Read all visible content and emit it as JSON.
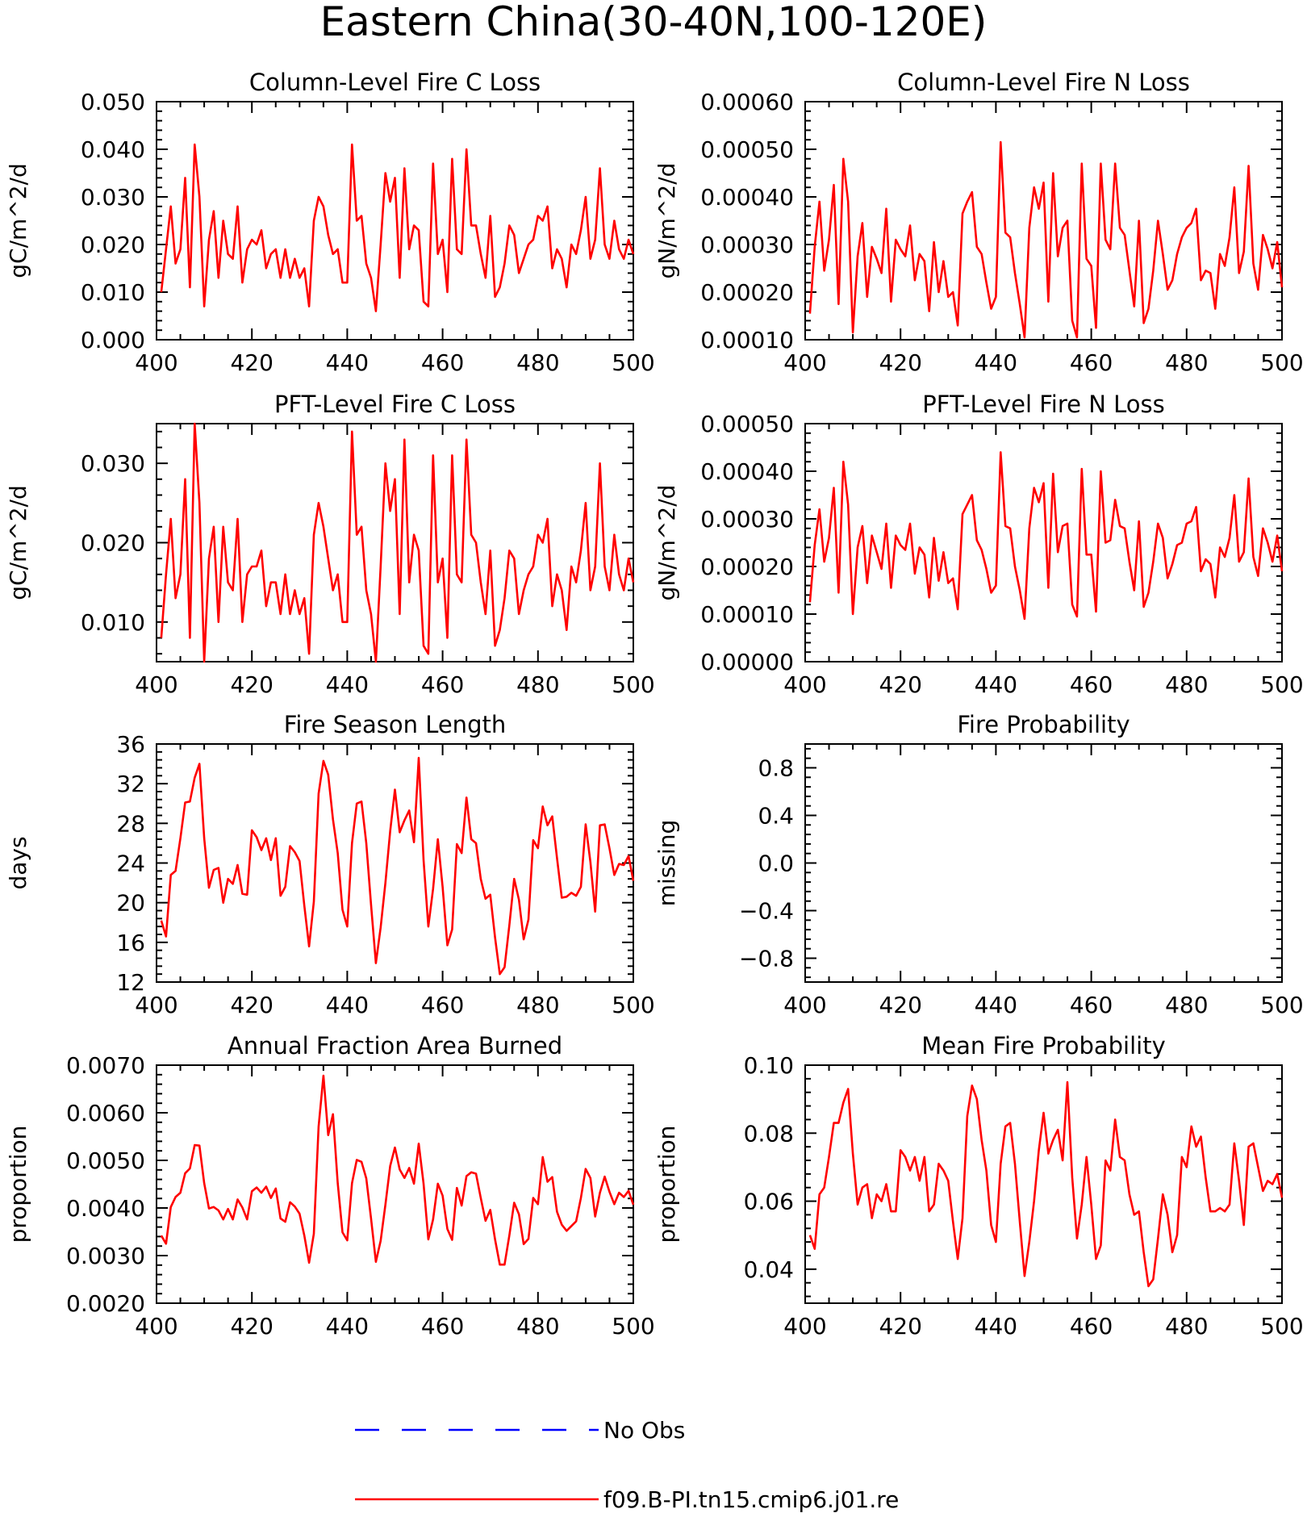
{
  "title": "Eastern China(30-40N,100-120E)",
  "colors": {
    "model": "#ff0000",
    "obs": "#0000ff",
    "axis": "#000000"
  },
  "legend": {
    "obs_label": "No Obs",
    "model_label": "f09.B-PI.tn15.cmip6.j01.re"
  },
  "chart_data": [
    {
      "type": "line",
      "title": "Column-Level Fire C Loss",
      "ylabel": "gC/m^2/d",
      "xlabel": "",
      "xlim": [
        400,
        500
      ],
      "ylim": [
        0.0,
        0.05
      ],
      "xticks": [
        "400",
        "420",
        "440",
        "460",
        "480",
        "500"
      ],
      "yticks": [
        0.0,
        0.01,
        0.02,
        0.03,
        0.04,
        0.05
      ],
      "ytick_labels": [
        "0.000",
        "0.010",
        "0.020",
        "0.030",
        "0.040",
        "0.050"
      ],
      "x_start": 401,
      "series": [
        {
          "name": "f09.B-PI.tn15.cmip6.j01.re",
          "values": [
            0.01,
            0.019,
            0.028,
            0.016,
            0.019,
            0.034,
            0.011,
            0.041,
            0.03,
            0.007,
            0.021,
            0.027,
            0.013,
            0.025,
            0.018,
            0.017,
            0.028,
            0.012,
            0.019,
            0.021,
            0.02,
            0.023,
            0.015,
            0.018,
            0.019,
            0.013,
            0.019,
            0.013,
            0.017,
            0.013,
            0.015,
            0.007,
            0.025,
            0.03,
            0.028,
            0.022,
            0.018,
            0.019,
            0.012,
            0.012,
            0.041,
            0.025,
            0.026,
            0.016,
            0.013,
            0.006,
            0.02,
            0.035,
            0.029,
            0.034,
            0.013,
            0.036,
            0.019,
            0.024,
            0.023,
            0.008,
            0.007,
            0.037,
            0.018,
            0.021,
            0.01,
            0.038,
            0.019,
            0.018,
            0.04,
            0.024,
            0.024,
            0.018,
            0.013,
            0.026,
            0.009,
            0.011,
            0.016,
            0.024,
            0.022,
            0.014,
            0.017,
            0.02,
            0.021,
            0.026,
            0.025,
            0.028,
            0.015,
            0.019,
            0.017,
            0.011,
            0.02,
            0.018,
            0.023,
            0.03,
            0.017,
            0.021,
            0.036,
            0.02,
            0.017,
            0.025,
            0.019,
            0.017,
            0.021,
            0.018
          ]
        }
      ]
    },
    {
      "type": "line",
      "title": "Column-Level Fire N Loss",
      "ylabel": "gN/m^2/d",
      "xlabel": "",
      "xlim": [
        400,
        500
      ],
      "ylim": [
        0.0001,
        0.0006
      ],
      "xticks": [
        "400",
        "420",
        "440",
        "460",
        "480",
        "500"
      ],
      "yticks": [
        0.0001,
        0.0002,
        0.0003,
        0.0004,
        0.0005,
        0.0006
      ],
      "ytick_labels": [
        "0.00010",
        "0.00020",
        "0.00030",
        "0.00040",
        "0.00050",
        "0.00060"
      ],
      "x_start": 401,
      "series": [
        {
          "name": "f09.B-PI.tn15.cmip6.j01.re",
          "values": [
            0.000155,
            0.000295,
            0.00039,
            0.000245,
            0.00031,
            0.000425,
            0.000175,
            0.00048,
            0.00039,
            0.000115,
            0.000275,
            0.000345,
            0.00019,
            0.000295,
            0.00027,
            0.00024,
            0.000375,
            0.00018,
            0.00031,
            0.00029,
            0.000275,
            0.00034,
            0.000225,
            0.00028,
            0.000265,
            0.00016,
            0.000305,
            0.0002,
            0.000265,
            0.00019,
            0.0002,
            0.00013,
            0.000365,
            0.00039,
            0.00041,
            0.000295,
            0.00028,
            0.00022,
            0.000165,
            0.00019,
            0.000515,
            0.000325,
            0.000315,
            0.00024,
            0.000175,
            0.000105,
            0.000335,
            0.00042,
            0.000375,
            0.00043,
            0.00018,
            0.00045,
            0.000275,
            0.000335,
            0.00035,
            0.00014,
            0.000105,
            0.00047,
            0.00027,
            0.000255,
            0.000125,
            0.00047,
            0.00031,
            0.00029,
            0.00047,
            0.000335,
            0.00032,
            0.000245,
            0.00017,
            0.00035,
            0.000135,
            0.000165,
            0.000245,
            0.00035,
            0.00028,
            0.000205,
            0.000225,
            0.00028,
            0.000315,
            0.000335,
            0.000345,
            0.000375,
            0.000225,
            0.000245,
            0.00024,
            0.000165,
            0.00028,
            0.000255,
            0.000315,
            0.00042,
            0.00024,
            0.000285,
            0.000465,
            0.00026,
            0.000205,
            0.00032,
            0.00029,
            0.00025,
            0.000305,
            0.00021
          ]
        }
      ]
    },
    {
      "type": "line",
      "title": "PFT-Level Fire C Loss",
      "ylabel": "gC/m^2/d",
      "xlabel": "",
      "xlim": [
        400,
        500
      ],
      "ylim": [
        0.005,
        0.035
      ],
      "xticks": [
        "400",
        "420",
        "440",
        "460",
        "480",
        "500"
      ],
      "yticks": [
        0.01,
        0.02,
        0.03
      ],
      "ytick_labels": [
        "0.010",
        "0.020",
        "0.030"
      ],
      "x_start": 401,
      "series": [
        {
          "name": "f09.B-PI.tn15.cmip6.j01.re",
          "values": [
            0.008,
            0.016,
            0.023,
            0.013,
            0.016,
            0.028,
            0.008,
            0.035,
            0.025,
            0.005,
            0.018,
            0.022,
            0.01,
            0.022,
            0.015,
            0.014,
            0.023,
            0.01,
            0.016,
            0.017,
            0.017,
            0.019,
            0.012,
            0.015,
            0.015,
            0.011,
            0.016,
            0.011,
            0.014,
            0.011,
            0.013,
            0.006,
            0.021,
            0.025,
            0.022,
            0.018,
            0.014,
            0.016,
            0.01,
            0.01,
            0.034,
            0.021,
            0.022,
            0.014,
            0.011,
            0.005,
            0.017,
            0.03,
            0.024,
            0.028,
            0.011,
            0.033,
            0.015,
            0.021,
            0.019,
            0.007,
            0.006,
            0.031,
            0.015,
            0.018,
            0.008,
            0.031,
            0.016,
            0.015,
            0.033,
            0.021,
            0.02,
            0.015,
            0.011,
            0.019,
            0.007,
            0.009,
            0.013,
            0.019,
            0.018,
            0.011,
            0.014,
            0.016,
            0.017,
            0.021,
            0.02,
            0.023,
            0.012,
            0.016,
            0.014,
            0.009,
            0.017,
            0.015,
            0.019,
            0.025,
            0.014,
            0.017,
            0.03,
            0.017,
            0.014,
            0.021,
            0.016,
            0.014,
            0.018,
            0.015
          ]
        }
      ]
    },
    {
      "type": "line",
      "title": "PFT-Level Fire N Loss",
      "ylabel": "gN/m^2/d",
      "xlabel": "",
      "xlim": [
        400,
        500
      ],
      "ylim": [
        0.0,
        0.0005
      ],
      "xticks": [
        "400",
        "420",
        "440",
        "460",
        "480",
        "500"
      ],
      "yticks": [
        0.0,
        0.0001,
        0.0002,
        0.0003,
        0.0004,
        0.0005
      ],
      "ytick_labels": [
        "0.00000",
        "0.00010",
        "0.00020",
        "0.00030",
        "0.00040",
        "0.00050"
      ],
      "x_start": 401,
      "series": [
        {
          "name": "f09.B-PI.tn15.cmip6.j01.re",
          "values": [
            0.000125,
            0.000245,
            0.00032,
            0.00021,
            0.00026,
            0.000365,
            0.000145,
            0.00042,
            0.00033,
            0.0001,
            0.00024,
            0.000285,
            0.000165,
            0.000265,
            0.00023,
            0.000195,
            0.00029,
            0.000155,
            0.000265,
            0.000245,
            0.000235,
            0.00029,
            0.000185,
            0.00024,
            0.000225,
            0.000135,
            0.00026,
            0.00017,
            0.00023,
            0.000165,
            0.000175,
            0.00011,
            0.00031,
            0.00033,
            0.00035,
            0.000255,
            0.000235,
            0.000195,
            0.000145,
            0.00016,
            0.00044,
            0.000285,
            0.00028,
            0.0002,
            0.00015,
            9e-05,
            0.00028,
            0.000365,
            0.000335,
            0.000375,
            0.000155,
            0.000395,
            0.00023,
            0.000285,
            0.00029,
            0.00012,
            9.5e-05,
            0.000405,
            0.000225,
            0.000225,
            0.000105,
            0.0004,
            0.00025,
            0.000255,
            0.00034,
            0.000285,
            0.00028,
            0.00021,
            0.00015,
            0.000295,
            0.000115,
            0.000145,
            0.00021,
            0.00029,
            0.00026,
            0.000175,
            0.000205,
            0.000245,
            0.00025,
            0.00029,
            0.000295,
            0.000325,
            0.00019,
            0.000215,
            0.000205,
            0.000135,
            0.00024,
            0.00022,
            0.00026,
            0.00035,
            0.00021,
            0.00023,
            0.000385,
            0.00022,
            0.00018,
            0.00028,
            0.00025,
            0.00021,
            0.000265,
            0.00019
          ]
        }
      ]
    },
    {
      "type": "line",
      "title": "Fire Season Length",
      "ylabel": "days",
      "xlabel": "",
      "xlim": [
        400,
        500
      ],
      "ylim": [
        12,
        36
      ],
      "xticks": [
        "400",
        "420",
        "440",
        "460",
        "480",
        "500"
      ],
      "yticks": [
        12,
        16,
        20,
        24,
        28,
        32,
        36
      ],
      "ytick_labels": [
        "12",
        "16",
        "20",
        "24",
        "28",
        "32",
        "36"
      ],
      "x_start": 401,
      "series": [
        {
          "name": "f09.B-PI.tn15.cmip6.j01.re",
          "values": [
            18.2,
            16.6,
            22.8,
            23.2,
            26.5,
            30.1,
            30.2,
            32.6,
            34.0,
            26.5,
            21.5,
            23.3,
            23.5,
            20.0,
            22.4,
            21.9,
            23.8,
            20.9,
            20.8,
            27.3,
            26.6,
            25.3,
            26.5,
            24.3,
            26.5,
            20.7,
            21.6,
            25.7,
            25.1,
            24.2,
            19.7,
            15.6,
            20.1,
            31.0,
            34.3,
            32.9,
            28.4,
            25.0,
            19.3,
            17.6,
            26.0,
            30.0,
            30.2,
            26.0,
            19.8,
            13.9,
            17.5,
            22.0,
            27.2,
            31.4,
            27.1,
            28.3,
            29.3,
            26.1,
            34.6,
            24.3,
            17.6,
            21.4,
            26.4,
            21.6,
            15.7,
            17.3,
            25.9,
            25.0,
            30.6,
            26.4,
            26.0,
            22.4,
            20.4,
            20.8,
            16.5,
            12.8,
            13.5,
            17.7,
            22.4,
            20.3,
            16.3,
            18.3,
            26.3,
            25.5,
            29.7,
            27.8,
            28.7,
            24.5,
            20.5,
            20.6,
            21.0,
            20.7,
            21.6,
            27.9,
            24.1,
            19.1,
            27.8,
            27.9,
            25.5,
            22.8,
            23.9,
            23.8,
            24.7,
            22.2
          ]
        }
      ]
    },
    {
      "type": "line",
      "title": "Fire Probability",
      "ylabel": "missing",
      "xlabel": "",
      "xlim": [
        400,
        500
      ],
      "ylim": [
        -1.0,
        1.0
      ],
      "xticks": [
        "400",
        "420",
        "440",
        "460",
        "480",
        "500"
      ],
      "yticks": [
        -0.8,
        -0.4,
        0.0,
        0.4,
        0.8
      ],
      "ytick_labels": [
        "−0.8",
        "−0.4",
        "0.0",
        "0.4",
        "0.8"
      ],
      "x_start": 401,
      "series": []
    },
    {
      "type": "line",
      "title": "Annual Fraction Area Burned",
      "ylabel": "proportion",
      "xlabel": "",
      "xlim": [
        400,
        500
      ],
      "ylim": [
        0.002,
        0.007
      ],
      "xticks": [
        "400",
        "420",
        "440",
        "460",
        "480",
        "500"
      ],
      "yticks": [
        0.002,
        0.003,
        0.004,
        0.005,
        0.006,
        0.007
      ],
      "ytick_labels": [
        "0.0020",
        "0.0030",
        "0.0040",
        "0.0050",
        "0.0060",
        "0.0070"
      ],
      "x_start": 401,
      "series": [
        {
          "name": "f09.B-PI.tn15.cmip6.j01.re",
          "values": [
            0.00342,
            0.00325,
            0.00402,
            0.00423,
            0.00432,
            0.00473,
            0.00483,
            0.00532,
            0.00531,
            0.00452,
            0.00399,
            0.00402,
            0.00395,
            0.00376,
            0.00398,
            0.00376,
            0.00418,
            0.00401,
            0.00376,
            0.00435,
            0.00443,
            0.00432,
            0.00445,
            0.00421,
            0.00441,
            0.00378,
            0.00371,
            0.00412,
            0.00403,
            0.00388,
            0.00342,
            0.00285,
            0.00346,
            0.00571,
            0.00678,
            0.00553,
            0.00597,
            0.00452,
            0.00349,
            0.00332,
            0.00452,
            0.00501,
            0.00497,
            0.00462,
            0.00378,
            0.00287,
            0.00331,
            0.00407,
            0.00488,
            0.00527,
            0.00481,
            0.00463,
            0.00484,
            0.00451,
            0.00535,
            0.00451,
            0.00334,
            0.00376,
            0.00451,
            0.00426,
            0.00356,
            0.00333,
            0.00442,
            0.00405,
            0.00467,
            0.00475,
            0.00472,
            0.00421,
            0.00373,
            0.00396,
            0.00334,
            0.00281,
            0.00281,
            0.00342,
            0.00411,
            0.00387,
            0.00324,
            0.00335,
            0.00421,
            0.00408,
            0.00507,
            0.00455,
            0.00465,
            0.00392,
            0.00365,
            0.00352,
            0.00362,
            0.00372,
            0.00421,
            0.00482,
            0.00463,
            0.00382,
            0.00432,
            0.00466,
            0.00434,
            0.00408,
            0.00432,
            0.00423,
            0.00436,
            0.00407
          ]
        }
      ]
    },
    {
      "type": "line",
      "title": "Mean Fire Probability",
      "ylabel": "proportion",
      "xlabel": "",
      "xlim": [
        400,
        500
      ],
      "ylim": [
        0.03,
        0.1
      ],
      "xticks": [
        "400",
        "420",
        "440",
        "460",
        "480",
        "500"
      ],
      "yticks": [
        0.04,
        0.06,
        0.08,
        0.1
      ],
      "ytick_labels": [
        "0.04",
        "0.06",
        "0.08",
        "0.10"
      ],
      "x_start": 401,
      "series": [
        {
          "name": "f09.B-PI.tn15.cmip6.j01.re",
          "values": [
            0.05,
            0.046,
            0.062,
            0.064,
            0.073,
            0.083,
            0.083,
            0.089,
            0.093,
            0.074,
            0.059,
            0.064,
            0.065,
            0.055,
            0.062,
            0.06,
            0.065,
            0.057,
            0.057,
            0.075,
            0.073,
            0.069,
            0.073,
            0.066,
            0.073,
            0.057,
            0.059,
            0.071,
            0.069,
            0.066,
            0.054,
            0.043,
            0.055,
            0.085,
            0.094,
            0.09,
            0.078,
            0.069,
            0.053,
            0.048,
            0.071,
            0.082,
            0.083,
            0.071,
            0.054,
            0.038,
            0.048,
            0.06,
            0.075,
            0.086,
            0.074,
            0.078,
            0.081,
            0.072,
            0.095,
            0.067,
            0.049,
            0.059,
            0.073,
            0.059,
            0.043,
            0.047,
            0.072,
            0.069,
            0.084,
            0.073,
            0.072,
            0.062,
            0.056,
            0.057,
            0.045,
            0.035,
            0.037,
            0.049,
            0.062,
            0.056,
            0.045,
            0.05,
            0.073,
            0.07,
            0.082,
            0.076,
            0.079,
            0.067,
            0.057,
            0.057,
            0.058,
            0.057,
            0.059,
            0.077,
            0.066,
            0.053,
            0.076,
            0.077,
            0.07,
            0.063,
            0.066,
            0.065,
            0.068,
            0.061
          ]
        }
      ]
    }
  ]
}
